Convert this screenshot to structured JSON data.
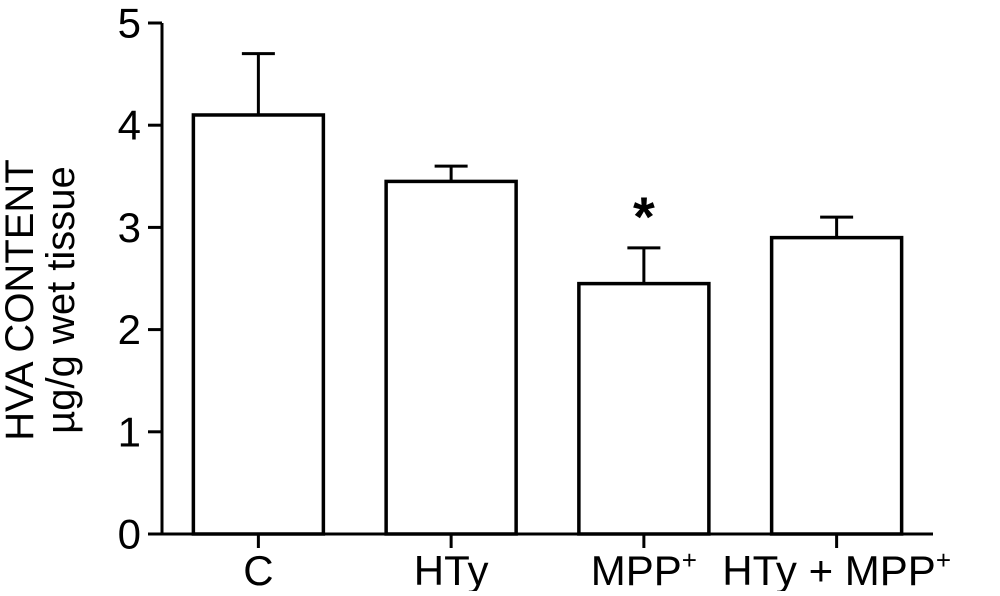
{
  "chart_data": {
    "type": "bar",
    "title": "",
    "ylabel_line1": "HVA CONTENT",
    "ylabel_line2": "µg/g wet tissue",
    "xlabel": "",
    "categories": [
      {
        "label": "C",
        "sup": ""
      },
      {
        "label": "HTy",
        "sup": ""
      },
      {
        "label": "MPP",
        "sup": "+"
      },
      {
        "label": "HTy + MPP",
        "sup": "+"
      }
    ],
    "values": [
      4.1,
      3.45,
      2.45,
      2.9
    ],
    "errors_upper": [
      0.6,
      0.15,
      0.35,
      0.2
    ],
    "ylim": [
      0,
      5
    ],
    "yticks": [
      "0",
      "1",
      "2",
      "3",
      "4",
      "5"
    ],
    "grid": "off",
    "legend": "none",
    "annotations": [
      {
        "category_index": 2,
        "text": "*",
        "meaning": "significance-marker"
      }
    ],
    "colors": {
      "ink": "#000000",
      "bar_fill": "#ffffff",
      "background": "#ffffff"
    }
  }
}
